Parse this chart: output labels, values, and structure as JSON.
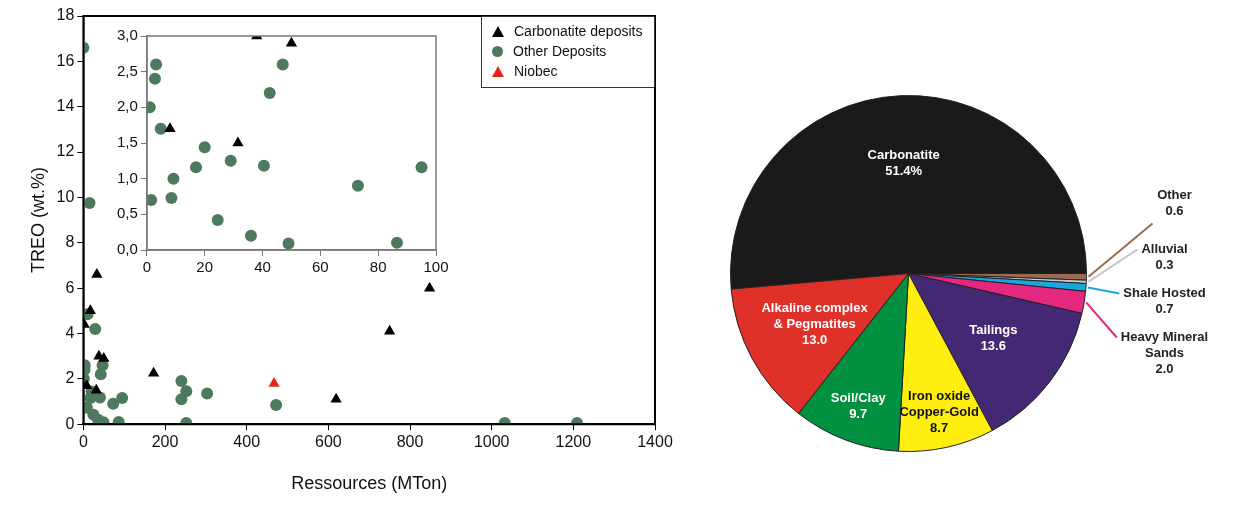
{
  "chart_data": [
    {
      "type": "scatter",
      "xlabel": "Ressources (MTon)",
      "ylabel": "TREO (wt.%)",
      "xlim": [
        0,
        1400
      ],
      "ylim": [
        0,
        18
      ],
      "xticks": [
        0,
        200,
        400,
        600,
        800,
        1000,
        1200,
        1400
      ],
      "yticks": [
        0,
        2,
        4,
        6,
        8,
        10,
        12,
        14,
        16,
        18
      ],
      "legend": "top right",
      "series": [
        {
          "name": "Carbonatite deposits",
          "color": "#000000",
          "marker": "triangle",
          "x": [
            2,
            17,
            33,
            38,
            50,
            8,
            31.5,
            172,
            619,
            750,
            848
          ],
          "values": [
            4.4,
            5.0,
            6.6,
            3.0,
            2.9,
            1.7,
            1.5,
            2.25,
            1.1,
            4.1,
            6.0
          ]
        },
        {
          "name": "Other Deposits",
          "color": "#4d7a5e",
          "marker": "circle",
          "x": [
            1,
            2.8,
            3.2,
            4.8,
            8.5,
            9.2,
            17,
            20,
            24.5,
            36,
            40.5,
            42.5,
            47,
            49,
            73,
            86.5,
            95,
            0,
            15,
            10,
            29,
            240,
            252,
            240,
            303,
            252,
            472,
            1032,
            1209
          ],
          "values": [
            2.0,
            2.4,
            2.6,
            null,
            0.73,
            null,
            1.16,
            1.44,
            0.42,
            0.2,
            1.18,
            2.2,
            2.6,
            0.09,
            0.9,
            0.1,
            1.16,
            16.6,
            9.75,
            4.85,
            4.2,
            1.9,
            1.45,
            1.1,
            1.35,
            0.05,
            0.85,
            0.05,
            0.05
          ]
        },
        {
          "name": "Niobec",
          "color": "#e8241f",
          "marker": "triangle",
          "x": [
            467
          ],
          "values": [
            1.8
          ]
        }
      ]
    },
    {
      "type": "scatter",
      "xlim": [
        0,
        100
      ],
      "ylim": [
        0,
        3
      ],
      "xticks": [
        0,
        20,
        40,
        60,
        80,
        100
      ],
      "yticks": [
        {
          "value": 0,
          "label": "0,0"
        },
        {
          "value": 0.5,
          "label": "0,5"
        },
        {
          "value": 1,
          "label": "1,0"
        },
        {
          "value": 1.5,
          "label": "1,5"
        },
        {
          "value": 2,
          "label": "2,0"
        },
        {
          "value": 2.5,
          "label": "2,5"
        },
        {
          "value": 3,
          "label": "3,0"
        }
      ],
      "series": [
        {
          "color": "#000000",
          "marker": "triangle",
          "x": [
            38,
            50,
            8,
            31.5
          ],
          "values": [
            3.0,
            2.9,
            1.7,
            1.5
          ]
        },
        {
          "color": "#4d7a5e",
          "marker": "circle",
          "x": [
            1,
            1.5,
            2.8,
            3.2,
            4.8,
            8.5,
            9.2,
            17,
            20,
            24.5,
            29,
            36,
            40.5,
            42.5,
            47,
            49,
            73,
            86.5,
            95
          ],
          "values": [
            2.0,
            0.7,
            2.4,
            2.6,
            1.7,
            0.73,
            1.0,
            1.16,
            1.44,
            0.42,
            1.25,
            0.2,
            1.18,
            2.2,
            2.6,
            0.09,
            0.9,
            0.1,
            1.16
          ]
        }
      ]
    },
    {
      "type": "pie",
      "categories": [
        "Carbonatite",
        "Other",
        "Alluvial",
        "Shale Hosted",
        "Heavy Mineral Sands",
        "Tailings",
        "Iron oxide Copper-Gold",
        "Soil/Clay",
        "Alkaline complex & Pegmatites"
      ],
      "values": [
        51.4,
        0.6,
        0.3,
        0.7,
        2.0,
        13.6,
        8.7,
        9.7,
        13.0
      ],
      "value_labels": [
        "51.4%",
        "0.6",
        "0.3",
        "0.7",
        "2.0",
        "13.6",
        "8.7",
        "9.7",
        "13.0"
      ],
      "colors": [
        "#1a1a1a",
        "#9b6a52",
        "#c8c8c8",
        "#1ca6df",
        "#e4287f",
        "#432874",
        "#ffee10",
        "#009040",
        "#e0302a"
      ]
    }
  ]
}
